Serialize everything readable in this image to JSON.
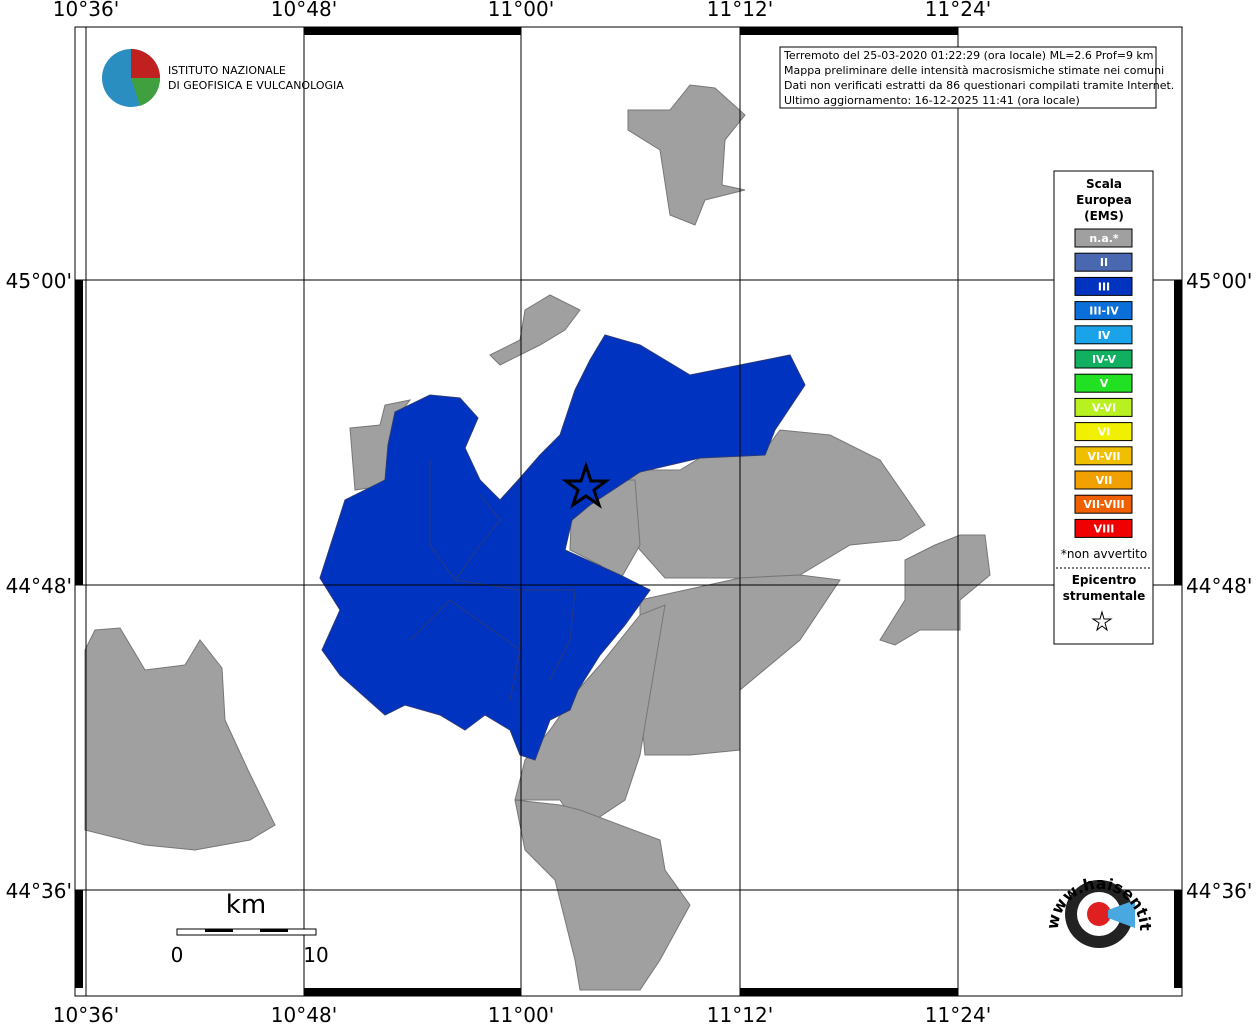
{
  "axes": {
    "top": [
      "10°36'",
      "10°48'",
      "11°00'",
      "11°12'",
      "11°24'"
    ],
    "bottom": [
      "10°36'",
      "10°48'",
      "11°00'",
      "11°12'",
      "11°24'"
    ],
    "left": [
      "45°00'",
      "44°48'",
      "44°36'"
    ],
    "right": [
      "45°00'",
      "44°48'",
      "44°36'"
    ]
  },
  "info": [
    "Terremoto del 25-03-2020 01:22:29 (ora locale) ML=2.6 Prof=9 km",
    "Mappa preliminare delle intensità macrosismiche stimate nei comuni",
    "Dati non verificati estratti da 86 questionari compilati tramite Internet.",
    "Ultimo aggiornamento: 16-12-2025 11:41 (ora locale)"
  ],
  "logo": [
    "ISTITUTO NAZIONALE",
    "DI GEOFISICA E VULCANOLOGIA"
  ],
  "legend": {
    "title": [
      "Scala",
      "Europea",
      "(EMS)"
    ],
    "items": [
      {
        "label": "n.a.*",
        "color": "#a0a0a0"
      },
      {
        "label": "II",
        "color": "#4a68b0"
      },
      {
        "label": "III",
        "color": "#0033c0"
      },
      {
        "label": "III-IV",
        "color": "#0a6fd9"
      },
      {
        "label": "IV",
        "color": "#1aa3e8"
      },
      {
        "label": "IV-V",
        "color": "#10b060"
      },
      {
        "label": "V",
        "color": "#22e022"
      },
      {
        "label": "V-VI",
        "color": "#b8f020"
      },
      {
        "label": "VI",
        "color": "#f0f000"
      },
      {
        "label": "VI-VII",
        "color": "#f0c000"
      },
      {
        "label": "VII",
        "color": "#f0a000"
      },
      {
        "label": "VII-VIII",
        "color": "#f06000"
      },
      {
        "label": "VIII",
        "color": "#f00000"
      }
    ],
    "note": "*non avvertito",
    "epicenter": [
      "Epicentro",
      "strumentale"
    ]
  },
  "scale": {
    "unit": "km",
    "ticks": [
      "0",
      "10"
    ]
  },
  "badge": "www.haisentitoilterremoto.it"
}
